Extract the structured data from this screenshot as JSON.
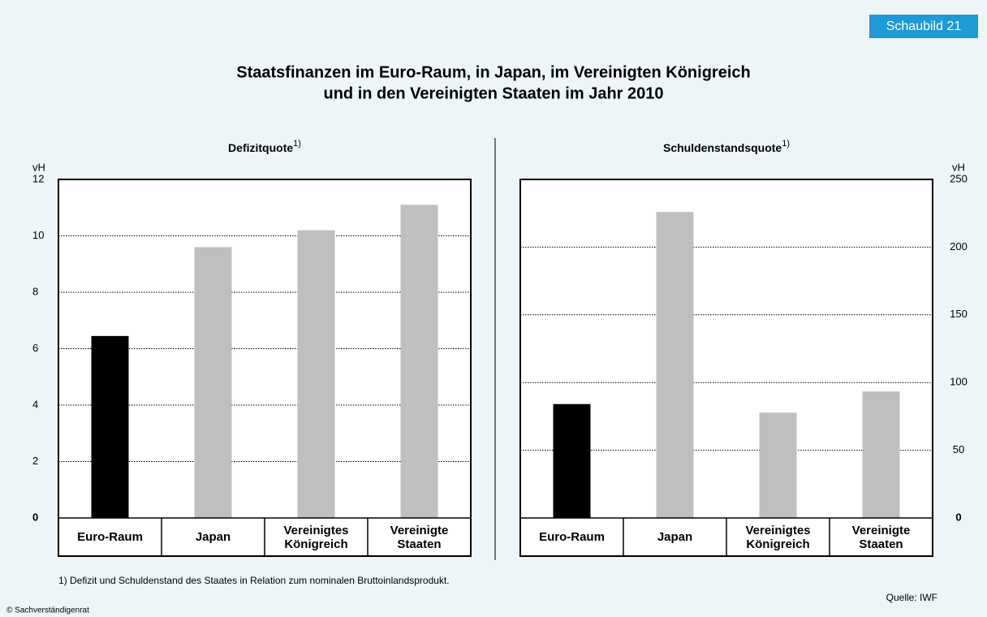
{
  "badge": "Schaubild 21",
  "title_lines": [
    "Staatsfinanzen im Euro-Raum, in Japan, im Vereinigten Königreich",
    "und in den Vereinigten Staaten im Jahr 2010"
  ],
  "footnote": "1) Defizit und Schuldenstand des Staates in Relation zum nominalen Bruttoinlandsprodukt.",
  "source": "Quelle: IWF",
  "copyright": "© Sachverständigenrat",
  "chart_data": [
    {
      "type": "bar",
      "title": "Defizitquote",
      "title_note": "1)",
      "ylabel": "vH",
      "y_axis_side": "left",
      "categories": [
        "Euro-Raum",
        "Japan",
        "Vereinigtes\nKönigreich",
        "Vereinigte\nStaaten"
      ],
      "values": [
        6.45,
        9.6,
        10.2,
        11.1
      ],
      "colors": [
        "#000000",
        "#bfbfbf",
        "#bfbfbf",
        "#bfbfbf"
      ],
      "ylim": [
        0,
        12
      ],
      "yticks": [
        0,
        2,
        4,
        6,
        8,
        10,
        12
      ],
      "grid": true
    },
    {
      "type": "bar",
      "title": "Schuldenstandsquote",
      "title_note": "1)",
      "ylabel": "vH",
      "y_axis_side": "right",
      "categories": [
        "Euro-Raum",
        "Japan",
        "Vereinigtes\nKönigreich",
        "Vereinigte\nStaaten"
      ],
      "values": [
        84.1,
        225.9,
        77.8,
        93.4
      ],
      "colors": [
        "#000000",
        "#bfbfbf",
        "#bfbfbf",
        "#bfbfbf"
      ],
      "ylim": [
        0,
        250
      ],
      "yticks": [
        0,
        50,
        100,
        150,
        200,
        250
      ],
      "grid": true
    }
  ]
}
